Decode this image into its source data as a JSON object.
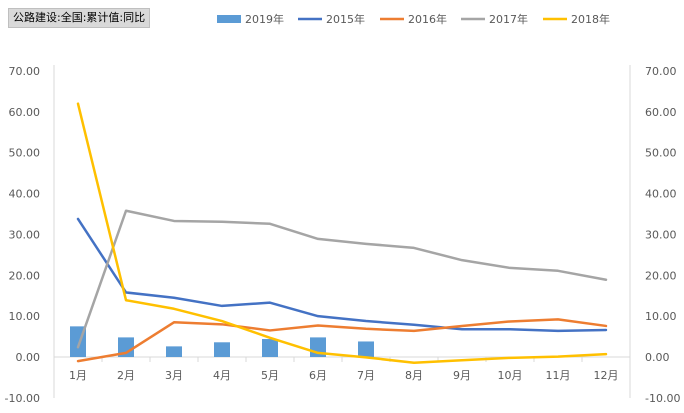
{
  "chart_data": {
    "type": "bar+line",
    "title": "公路建设:全国:累计值:同比",
    "categories": [
      "1月",
      "2月",
      "3月",
      "4月",
      "5月",
      "6月",
      "7月",
      "8月",
      "9月",
      "10月",
      "11月",
      "12月"
    ],
    "ylim": [
      -10,
      70
    ],
    "yticks": [
      "-10.00",
      "0.00",
      "10.00",
      "20.00",
      "30.00",
      "40.00",
      "50.00",
      "60.00",
      "70.00"
    ],
    "y2lim": [
      -10,
      70
    ],
    "y2ticks": [
      "-10.00",
      "0.00",
      "10.00",
      "20.00",
      "30.00",
      "40.00",
      "50.00",
      "60.00",
      "70.00"
    ],
    "grid": false,
    "legend_position": "top",
    "series": [
      {
        "name": "2019年",
        "type": "bar",
        "color": "#5b9bd5",
        "values": [
          7.5,
          4.8,
          2.6,
          3.6,
          4.4,
          4.8,
          3.8,
          null,
          null,
          null,
          null,
          null
        ]
      },
      {
        "name": "2015年",
        "type": "line",
        "color": "#4472c4",
        "values": [
          33.8,
          15.8,
          14.5,
          12.5,
          13.3,
          10.0,
          8.8,
          7.9,
          6.8,
          6.8,
          6.4,
          6.6
        ]
      },
      {
        "name": "2016年",
        "type": "line",
        "color": "#ed7d31",
        "values": [
          -1.0,
          1.0,
          8.5,
          8.0,
          6.5,
          7.7,
          6.9,
          6.4,
          7.6,
          8.7,
          9.2,
          7.6
        ]
      },
      {
        "name": "2017年",
        "type": "line",
        "color": "#a5a5a5",
        "values": [
          2.4,
          35.8,
          33.3,
          33.1,
          32.6,
          28.9,
          27.7,
          26.7,
          23.7,
          21.8,
          21.1,
          18.9
        ]
      },
      {
        "name": "2018年",
        "type": "line",
        "color": "#ffc000",
        "values": [
          62.0,
          13.9,
          11.8,
          8.8,
          4.7,
          1.0,
          -0.1,
          -1.4,
          -0.8,
          -0.2,
          0.1,
          0.7
        ]
      }
    ]
  }
}
